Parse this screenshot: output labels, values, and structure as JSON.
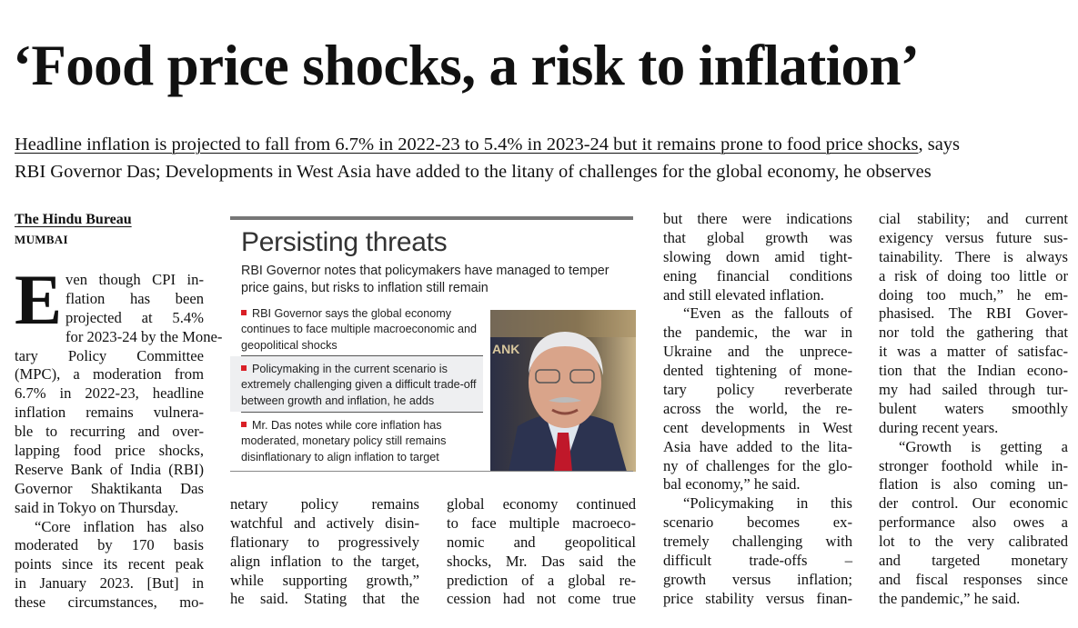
{
  "headline": "‘Food price shocks, a risk to inflation’",
  "deck": {
    "underlined": "Headline inflation is projected to fall from 6.7% in 2022-23 to 5.4% in 2023-24 but it remains prone to food price shocks",
    "rest_line1": ", says",
    "line2": "RBI Governor Das; Developments in West Asia have added to the litany of challenges for the global economy, he observes"
  },
  "byline": "The Hindu Bureau",
  "dateline": "MUMBAI",
  "drop_cap": "E",
  "columns": [
    [
      [
        "ven though CPI in-",
        "flation has been",
        "projected at 5.4%",
        "for 2023-24 by the Mone-",
        "tary Policy Committee",
        "(MPC), a moderation from",
        "6.7% in 2022-23, headline",
        "inflation remains vulnera-",
        "ble to recurring and over-",
        "lapping food price shocks,",
        "Reserve Bank of India (RBI)",
        "Governor Shaktikanta Das",
        "said in Tokyo on Thursday."
      ],
      [
        "“Core inflation has also",
        "moderated by 170 basis",
        "points since its recent peak",
        "in January 2023. [But] in",
        "these circumstances, mo-"
      ]
    ],
    [
      [
        "netary policy remains",
        "watchful and actively disin-",
        "flationary to progressively",
        "align inflation to the target,",
        "while supporting growth,”",
        "he said. Stating that the"
      ]
    ],
    [
      [
        "global economy continued",
        "to face multiple macroeco-",
        "nomic and geopolitical",
        "shocks, Mr. Das said the",
        "prediction of a global re-",
        "cession had not come true"
      ]
    ],
    [
      [
        "but there were indications",
        "that global growth was",
        "slowing down amid tight-",
        "ening financial conditions",
        "and still elevated inflation."
      ],
      [
        "“Even as the fallouts of",
        "the pandemic, the war in",
        "Ukraine and the unprece-",
        "dented tightening of mone-",
        "tary policy reverberate",
        "across the world, the re-",
        "cent developments in West",
        "Asia have added to the lita-",
        "ny of challenges for the glo-",
        "bal economy,” he said."
      ],
      [
        "“Policymaking in this",
        "scenario becomes ex-",
        "tremely challenging with",
        "difficult trade-offs –",
        "growth versus inflation;",
        "price stability versus finan-"
      ]
    ],
    [
      [
        "cial stability; and current",
        "exigency versus future sus-",
        "tainability. There is always",
        "a risk of doing too little or",
        "doing too much,” he em-",
        "phasised. The RBI Gover-",
        "nor told the gathering that",
        "it was a matter of satisfac-",
        "tion that the Indian econo-",
        "my had sailed through tur-",
        "bulent waters smoothly",
        "during recent years."
      ],
      [
        "“Growth is getting a",
        "stronger foothold while in-",
        "flation is also coming un-",
        "der control. Our economic",
        "performance also owes a",
        "lot to the very calibrated",
        "and targeted monetary",
        "and fiscal responses since",
        "the pandemic,” he said."
      ]
    ]
  ],
  "infobox": {
    "title": "Persisting threats",
    "subtitle": "RBI Governor notes that policymakers have managed to temper price gains, but risks to inflation still remain",
    "bullets": [
      "RBI Governor says the global economy continues to face multiple macroeconomic and geopolitical shocks",
      "Policymaking in the current scenario is extremely challenging given a difficult trade-off between growth and inflation, he adds",
      "Mr. Das notes while core inflation has moderated, monetary policy still remains disinflationary to align inflation to target"
    ],
    "bullet_color": "#d91f26",
    "photo_icon": "portrait-photo"
  }
}
